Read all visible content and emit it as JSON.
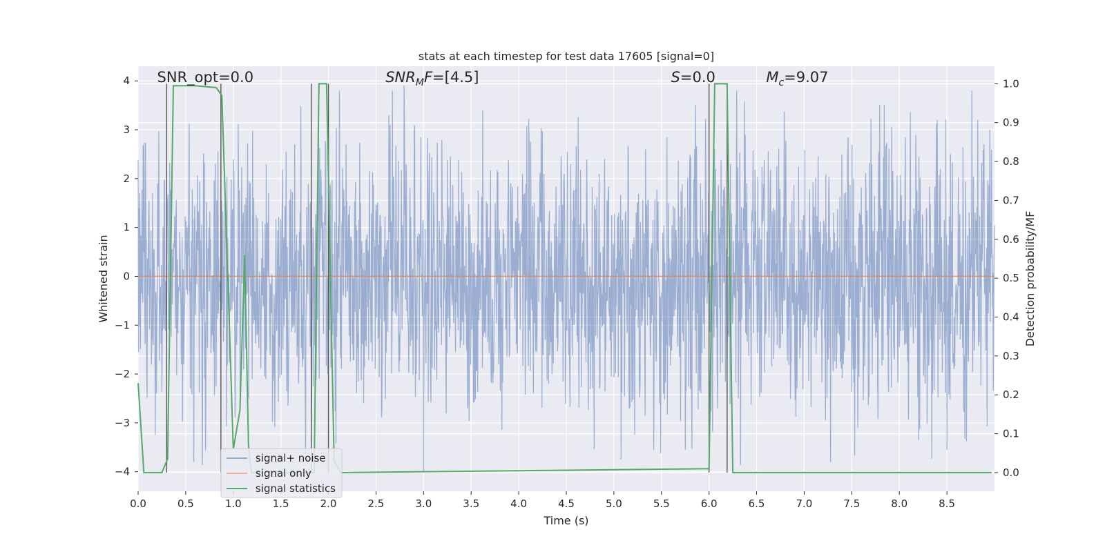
{
  "chart_data": {
    "type": "line",
    "title": "stats at each timestep for test data 17605 [signal=0]",
    "xlabel": "Time (s)",
    "ylabel": "Whitened strain",
    "y2label": "Detection probability/MF",
    "xlim": [
      0,
      9.0
    ],
    "ylim": [
      -4.4,
      4.3
    ],
    "y2lim": [
      -0.048,
      1.045
    ],
    "xticks": [
      0.0,
      0.5,
      1.0,
      1.5,
      2.0,
      2.5,
      3.0,
      3.5,
      4.0,
      4.5,
      5.0,
      5.5,
      6.0,
      6.5,
      7.0,
      7.5,
      8.0,
      8.5
    ],
    "xtick_labels": [
      "0.0",
      "0.5",
      "1.0",
      "1.5",
      "2.0",
      "2.5",
      "3.0",
      "3.5",
      "4.0",
      "4.5",
      "5.0",
      "5.5",
      "6.0",
      "6.5",
      "7.0",
      "7.5",
      "8.0",
      "8.5"
    ],
    "yticks": [
      -4,
      -3,
      -2,
      -1,
      0,
      1,
      2,
      3,
      4
    ],
    "ytick_labels": [
      "−4",
      "−3",
      "−2",
      "−1",
      "0",
      "1",
      "2",
      "3",
      "4"
    ],
    "y2ticks": [
      0.0,
      0.1,
      0.2,
      0.3,
      0.4,
      0.5,
      0.6,
      0.7,
      0.8,
      0.9,
      1.0
    ],
    "y2tick_labels": [
      "0.0",
      "0.1",
      "0.2",
      "0.3",
      "0.4",
      "0.5",
      "0.6",
      "0.7",
      "0.8",
      "0.9",
      "1.0"
    ],
    "annotations": [
      {
        "text": "SNR_opt=0.0",
        "x": 0.2,
        "y": 4.0
      },
      {
        "text": "SNR_MF=[4.5]",
        "x": 2.6,
        "y": 4.0
      },
      {
        "text": "S=0.0",
        "x": 5.6,
        "y": 4.0
      },
      {
        "text": "M_c=9.07",
        "x": 6.6,
        "y": 4.0
      }
    ],
    "series": [
      {
        "name": "signal+ noise",
        "color": "#4c72b0",
        "style": "dense noise trace, sample rate 1024 Hz",
        "sample_rate_hz": 1024,
        "envelope": {
          "max": 4.0,
          "min": -4.0,
          "typical_abs": 1.7
        },
        "peaks": [
          {
            "x": 3.0,
            "y": 4.0
          },
          {
            "x": 2.8,
            "y": 3.1
          },
          {
            "x": 2.65,
            "y": 3.1
          },
          {
            "x": 8.4,
            "y": 3.2
          },
          {
            "x": 8.95,
            "y": 3.0
          },
          {
            "x": 3.0,
            "y": -4.0
          },
          {
            "x": 5.42,
            "y": -3.55
          },
          {
            "x": 5.75,
            "y": -3.55
          },
          {
            "x": 8.5,
            "y": -3.55
          },
          {
            "x": 8.2,
            "y": -3.35
          }
        ]
      },
      {
        "name": "signal only",
        "color": "#dd8452",
        "x": [
          0.0,
          9.0
        ],
        "y": [
          0.0,
          0.0
        ]
      },
      {
        "name": "signal statistics",
        "color": "#55a868",
        "axis": "right",
        "x": [
          0.0,
          0.06,
          0.25,
          0.31,
          0.37,
          0.6,
          0.82,
          0.88,
          0.93,
          1.0,
          1.07,
          1.12,
          1.16,
          1.19,
          1.22,
          1.85,
          1.9,
          1.98,
          2.06,
          2.13,
          6.0,
          6.06,
          6.19,
          6.25,
          8.97
        ],
        "y": [
          0.23,
          0.0,
          0.0,
          0.035,
          0.995,
          0.995,
          0.99,
          0.97,
          0.6,
          0.06,
          0.16,
          0.56,
          0.07,
          0.0,
          0.0,
          0.0,
          1.0,
          1.0,
          0.03,
          0.0,
          0.01,
          1.0,
          1.0,
          0.0,
          0.0
        ]
      }
    ],
    "vertical_markers": {
      "color": "#555555",
      "x": [
        0.3,
        0.87,
        1.82,
        2.0,
        6.0,
        6.19
      ]
    },
    "legend": {
      "location": "lower-left",
      "entries": [
        "signal+ noise",
        "signal only",
        "signal statistics"
      ]
    }
  }
}
